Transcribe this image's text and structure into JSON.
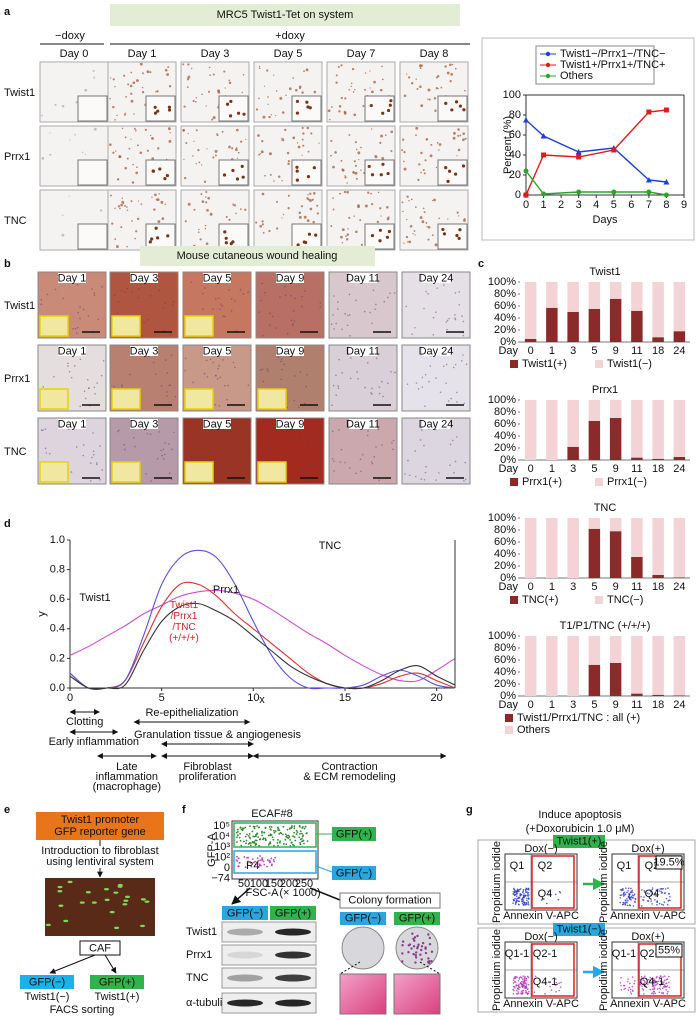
{
  "panel_labels": [
    "a",
    "b",
    "c",
    "d",
    "e",
    "f",
    "g"
  ],
  "panel_a": {
    "title": "MRC5 Twist1-Tet on system",
    "minus_doxy": "−doxy",
    "plus_doxy": "+doxy",
    "days": [
      "Day 0",
      "Day 1",
      "Day 3",
      "Day 5",
      "Day 7",
      "Day 8"
    ],
    "rows": [
      "Twist1",
      "Prrx1",
      "TNC"
    ]
  },
  "panel_b": {
    "title": "Mouse cutaneous wound healing",
    "rows": [
      "Twist1",
      "Prrx1",
      "TNC"
    ],
    "days": [
      "Day 1",
      "Day 3",
      "Day 5",
      "Day 9",
      "Day 11",
      "Day 24"
    ]
  },
  "chart_data": [
    {
      "type": "line",
      "x": [
        0,
        1,
        3,
        5,
        7,
        8
      ],
      "xlabel": "Days",
      "ylabel": "Percent (%)",
      "xlim": [
        0,
        9
      ],
      "xticks": [
        0,
        1,
        2,
        3,
        4,
        5,
        6,
        7,
        8,
        9
      ],
      "ylim": [
        0,
        100
      ],
      "yticks": [
        0,
        20,
        40,
        60,
        80,
        100
      ],
      "legend": "top",
      "series": [
        {
          "name": "Twist1−/Prrx1−/TNC−",
          "color": "#1f3fd6",
          "marker": "triangle",
          "values": [
            75,
            59,
            43,
            47,
            15,
            13
          ]
        },
        {
          "name": "Twist1+/Prrx1+/TNC+",
          "color": "#e01b1b",
          "marker": "square",
          "values": [
            0,
            40,
            38,
            45,
            83,
            85
          ]
        },
        {
          "name": "Others",
          "color": "#2aa52a",
          "marker": "circle",
          "values": [
            24,
            1,
            3,
            3,
            3,
            0
          ]
        }
      ]
    },
    {
      "type": "bar",
      "stacked": true,
      "title": "Twist1",
      "xlabel": "Day",
      "categories": [
        "0",
        "1",
        "3",
        "5",
        "9",
        "11",
        "18",
        "24"
      ],
      "ylim": [
        0,
        100
      ],
      "yticks": [
        {
          "value": 0,
          "label": "0%"
        },
        {
          "value": 20,
          "label": "20%"
        },
        {
          "value": 40,
          "label": "40%"
        },
        {
          "value": 60,
          "label": "60%"
        },
        {
          "value": 80,
          "label": "80%"
        },
        {
          "value": 100,
          "label": "100%"
        }
      ],
      "series": [
        {
          "name": "Twist1(+)",
          "color": "#8b2a2a",
          "values": [
            5,
            57,
            50,
            55,
            72,
            52,
            8,
            18
          ]
        },
        {
          "name": "Twist1(−)",
          "color": "#f3d3d6",
          "values": [
            95,
            43,
            50,
            45,
            28,
            48,
            92,
            82
          ]
        }
      ]
    },
    {
      "type": "bar",
      "stacked": true,
      "title": "Prrx1",
      "xlabel": "Day",
      "categories": [
        "0",
        "1",
        "3",
        "5",
        "9",
        "11",
        "18",
        "24"
      ],
      "ylim": [
        0,
        100
      ],
      "yticks": [
        {
          "value": 0,
          "label": "0%"
        },
        {
          "value": 20,
          "label": "20%"
        },
        {
          "value": 40,
          "label": "40%"
        },
        {
          "value": 60,
          "label": "60%"
        },
        {
          "value": 80,
          "label": "80%"
        },
        {
          "value": 100,
          "label": "100%"
        }
      ],
      "series": [
        {
          "name": "Prrx1(+)",
          "color": "#8b2a2a",
          "values": [
            0,
            0,
            22,
            65,
            70,
            4,
            2,
            5
          ]
        },
        {
          "name": "Prrx1(−)",
          "color": "#f3d3d6",
          "values": [
            100,
            100,
            78,
            35,
            30,
            96,
            98,
            95
          ]
        }
      ]
    },
    {
      "type": "bar",
      "stacked": true,
      "title": "TNC",
      "xlabel": "Day",
      "categories": [
        "0",
        "1",
        "3",
        "5",
        "9",
        "11",
        "18",
        "24"
      ],
      "ylim": [
        0,
        100
      ],
      "yticks": [
        {
          "value": 0,
          "label": "0%"
        },
        {
          "value": 20,
          "label": "20%"
        },
        {
          "value": 40,
          "label": "40%"
        },
        {
          "value": 60,
          "label": "60%"
        },
        {
          "value": 80,
          "label": "80%"
        },
        {
          "value": 100,
          "label": "100%"
        }
      ],
      "series": [
        {
          "name": "TNC(+)",
          "color": "#8b2a2a",
          "values": [
            0,
            0,
            0,
            82,
            78,
            35,
            5,
            1
          ]
        },
        {
          "name": "TNC(−)",
          "color": "#f3d3d6",
          "values": [
            100,
            100,
            100,
            18,
            22,
            65,
            95,
            99
          ]
        }
      ]
    },
    {
      "type": "bar",
      "stacked": true,
      "title": "T1/P1/TNC (+/+/+)",
      "xlabel": "Day",
      "categories": [
        "0",
        "1",
        "3",
        "5",
        "9",
        "11",
        "18",
        "24"
      ],
      "ylim": [
        0,
        100
      ],
      "yticks": [
        {
          "value": 0,
          "label": "0%"
        },
        {
          "value": 20,
          "label": "20%"
        },
        {
          "value": 40,
          "label": "40%"
        },
        {
          "value": 60,
          "label": "60%"
        },
        {
          "value": 80,
          "label": "80%"
        },
        {
          "value": 100,
          "label": "100%"
        }
      ],
      "series": [
        {
          "name": "Twist1/Prrx1/TNC : all (+)",
          "color": "#8b2a2a",
          "values": [
            0,
            0,
            0,
            52,
            55,
            4,
            2,
            1
          ]
        },
        {
          "name": "Others",
          "color": "#f3d3d6",
          "values": [
            100,
            100,
            100,
            48,
            45,
            96,
            98,
            99
          ]
        }
      ]
    },
    {
      "type": "line",
      "smooth": true,
      "xlabel": "x",
      "ylabel": "y",
      "x": [
        0,
        1,
        2,
        3,
        4,
        5,
        6,
        7,
        8,
        9,
        10,
        11,
        12,
        13,
        14,
        15,
        16,
        17,
        18,
        19,
        20,
        21
      ],
      "xlim": [
        0,
        21
      ],
      "xticks": [
        0,
        5,
        10,
        15,
        20
      ],
      "ylim": [
        0,
        1.0
      ],
      "yticks": [
        {
          "value": 0,
          "label": "0.0"
        },
        0.2,
        0.4,
        0.6,
        0.8,
        {
          "value": 1,
          "label": "1.0"
        }
      ],
      "series": [
        {
          "name": "Twist1",
          "color": "#d04ad0",
          "label_color": "#2a8c9c",
          "values": [
            0.22,
            0.28,
            0.35,
            0.42,
            0.5,
            0.56,
            0.62,
            0.65,
            0.66,
            0.64,
            0.6,
            0.53,
            0.45,
            0.37,
            0.3,
            0.22,
            0.15,
            0.09,
            0.05,
            0.05,
            0.12,
            0.2
          ]
        },
        {
          "name": "Prrx1",
          "color": "#e03030",
          "label_color": "#5a7a1a",
          "values": [
            0.1,
            0,
            0,
            0.05,
            0.3,
            0.55,
            0.7,
            0.7,
            0.62,
            0.5,
            0.4,
            0.3,
            0.2,
            0.1,
            0.03,
            0,
            0,
            0.03,
            0.08,
            0.1,
            0.05,
            0
          ]
        },
        {
          "name": "TNC",
          "color": "#5b4fe0",
          "label_color": "#7a2ab8",
          "values": [
            0.1,
            0,
            0,
            0.05,
            0.35,
            0.7,
            0.88,
            0.93,
            0.88,
            0.7,
            0.45,
            0.22,
            0.07,
            0,
            0,
            0,
            0.02,
            0.08,
            0.12,
            0.08,
            0.02,
            0
          ]
        },
        {
          "name": "Twist1 /Prrx1 /TNC (+/+/+)",
          "color": "#333333",
          "label_color": "#d62020",
          "values": [
            0.08,
            0,
            0,
            0.02,
            0.25,
            0.45,
            0.55,
            0.57,
            0.52,
            0.45,
            0.35,
            0.25,
            0.15,
            0.08,
            0.03,
            0,
            0,
            0.05,
            0.12,
            0.15,
            0.08,
            0.02
          ]
        }
      ]
    }
  ],
  "panel_d": {
    "annotations": [
      [
        "Clotting"
      ],
      [
        "Early inflammation"
      ],
      [
        "Re-epithelialization"
      ],
      [
        "Granulation tissue & angiogenesis"
      ],
      [
        "Late",
        "inflammation",
        "(macrophage)"
      ],
      [
        "Fibroblast",
        "proliferation"
      ],
      [
        "Contraction",
        "& ECM remodeling"
      ]
    ]
  },
  "panel_e": {
    "reporter": [
      "Twist1 promoter",
      "GFP reporter gene"
    ],
    "intro": [
      "Introduction to fibroblast",
      "using lentiviral system"
    ],
    "caf": "CAF",
    "gfp_neg": "GFP(−)",
    "gfp_pos": "GFP(+)",
    "twist_neg": "Twist1(−)",
    "twist_pos": "Twist1(+)",
    "facs": "FACS sorting"
  },
  "panel_f": {
    "title": "ECAF#8",
    "gate_pos": "GFP(+)",
    "gate_neg": "GFP(−)",
    "y_label": "GFP-A",
    "x_label": "FSC-A",
    "x_unit": "(× 1000)",
    "gate_name": "P4",
    "x_ticks": [
      "50",
      "100",
      "150",
      "200",
      "250"
    ],
    "y_ticks": [
      "10⁵",
      "10⁴",
      "10³",
      "10²",
      "0",
      "−74"
    ],
    "western": {
      "headers": [
        "GFP(−)",
        "GFP(+)"
      ],
      "rows": [
        "Twist1",
        "Prrx1",
        "TNC",
        "α-tubulin"
      ]
    },
    "colony": {
      "title": "Colony formation",
      "headers": [
        "GFP(−)",
        "GFP(+)"
      ]
    }
  },
  "panel_g": {
    "title": "Induce apoptosis",
    "subtitle": "(+Doxorubicin 1.0 μM)",
    "y_label": "Propidium iodide",
    "x_label": "Annexin V-APC",
    "groups": [
      {
        "label": "Twist1(+)",
        "plots": [
          {
            "title": "Dox(−)",
            "quadrants": [
              "Q1",
              "Q2",
              "Q4"
            ]
          },
          {
            "title": "Dox(+)",
            "quadrants": [
              "Q1",
              "Q2",
              "Q4"
            ],
            "percent": "19.5%"
          }
        ]
      },
      {
        "label": "Twist1(−)",
        "plots": [
          {
            "title": "Dox(−)",
            "quadrants": [
              "Q1-1",
              "Q2-1",
              "Q4-1"
            ]
          },
          {
            "title": "Dox(+)",
            "quadrants": [
              "Q1-1",
              "Q2-1",
              "Q4-1"
            ],
            "percent": "55%"
          }
        ]
      }
    ]
  }
}
